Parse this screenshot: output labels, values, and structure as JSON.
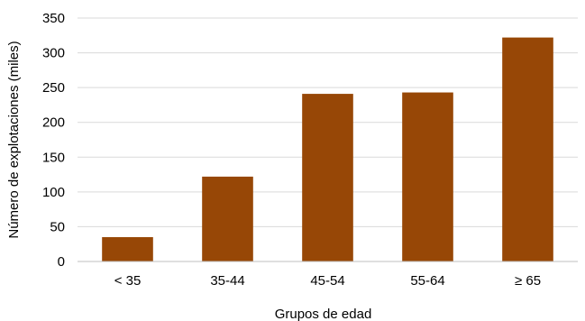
{
  "chart_data": {
    "type": "bar",
    "title": "",
    "xlabel": "Grupos de edad",
    "ylabel": "Número de explotaciones (miles)",
    "categories": [
      "<  35",
      "35-44",
      "45-54",
      "55-64",
      "≥ 65"
    ],
    "values": [
      35,
      122,
      241,
      243,
      322
    ],
    "ylim": [
      0,
      350
    ],
    "yticks": [
      0,
      50,
      100,
      150,
      200,
      250,
      300,
      350
    ],
    "grid": true,
    "legend": "none",
    "bar_color": "#974706"
  }
}
